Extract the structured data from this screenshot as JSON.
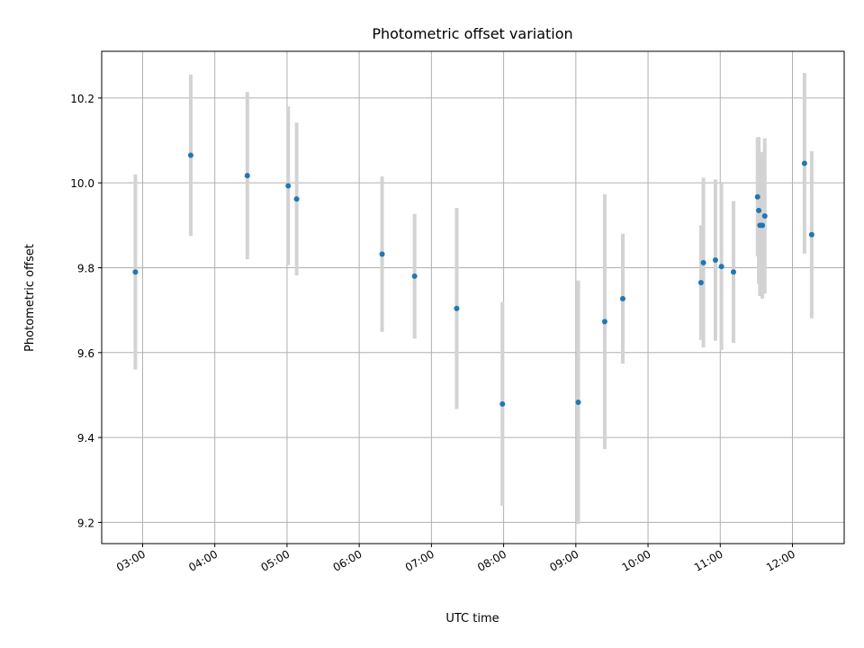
{
  "chart_data": {
    "type": "scatter",
    "title": "Photometric offset variation",
    "xlabel": "UTC time",
    "ylabel": "Photometric offset",
    "x_ticks": [
      "03:00",
      "04:00",
      "05:00",
      "06:00",
      "07:00",
      "08:00",
      "09:00",
      "10:00",
      "11:00",
      "12:00"
    ],
    "y_ticks": [
      "9.2",
      "9.4",
      "9.6",
      "9.8",
      "10.0",
      "10.2"
    ],
    "xlim": [
      "02:26",
      "12:43"
    ],
    "ylim": [
      9.15,
      10.31
    ],
    "grid": true,
    "colors": {
      "point": "#1f77b4",
      "errorbar": "#d3d3d3",
      "grid": "#b0b0b0"
    },
    "series": [
      {
        "points": [
          {
            "x": "02:54",
            "y": 9.79,
            "yerr": 0.23
          },
          {
            "x": "03:40",
            "y": 10.065,
            "yerr": 0.19
          },
          {
            "x": "04:27",
            "y": 10.017,
            "yerr": 0.197
          },
          {
            "x": "05:01",
            "y": 9.993,
            "yerr": 0.187
          },
          {
            "x": "05:08",
            "y": 9.962,
            "yerr": 0.18
          },
          {
            "x": "06:19",
            "y": 9.832,
            "yerr": 0.183
          },
          {
            "x": "06:46",
            "y": 9.78,
            "yerr": 0.147
          },
          {
            "x": "07:21",
            "y": 9.704,
            "yerr": 0.237
          },
          {
            "x": "07:59",
            "y": 9.479,
            "yerr": 0.24
          },
          {
            "x": "09:02",
            "y": 9.483,
            "yerr": 0.287
          },
          {
            "x": "09:24",
            "y": 9.673,
            "yerr": 0.3
          },
          {
            "x": "09:39",
            "y": 9.727,
            "yerr": 0.153
          },
          {
            "x": "10:44",
            "y": 9.765,
            "yerr": 0.135
          },
          {
            "x": "10:46",
            "y": 9.812,
            "yerr": 0.2
          },
          {
            "x": "10:56",
            "y": 9.818,
            "yerr": 0.19
          },
          {
            "x": "11:01",
            "y": 9.803,
            "yerr": 0.197
          },
          {
            "x": "11:11",
            "y": 9.79,
            "yerr": 0.167
          },
          {
            "x": "11:31",
            "y": 9.967,
            "yerr": 0.14
          },
          {
            "x": "11:32",
            "y": 9.935,
            "yerr": 0.173
          },
          {
            "x": "11:33",
            "y": 9.9,
            "yerr": 0.167
          },
          {
            "x": "11:35",
            "y": 9.9,
            "yerr": 0.173
          },
          {
            "x": "11:37",
            "y": 9.922,
            "yerr": 0.183
          },
          {
            "x": "12:10",
            "y": 10.046,
            "yerr": 0.213
          },
          {
            "x": "12:16",
            "y": 9.878,
            "yerr": 0.197
          }
        ]
      }
    ]
  }
}
